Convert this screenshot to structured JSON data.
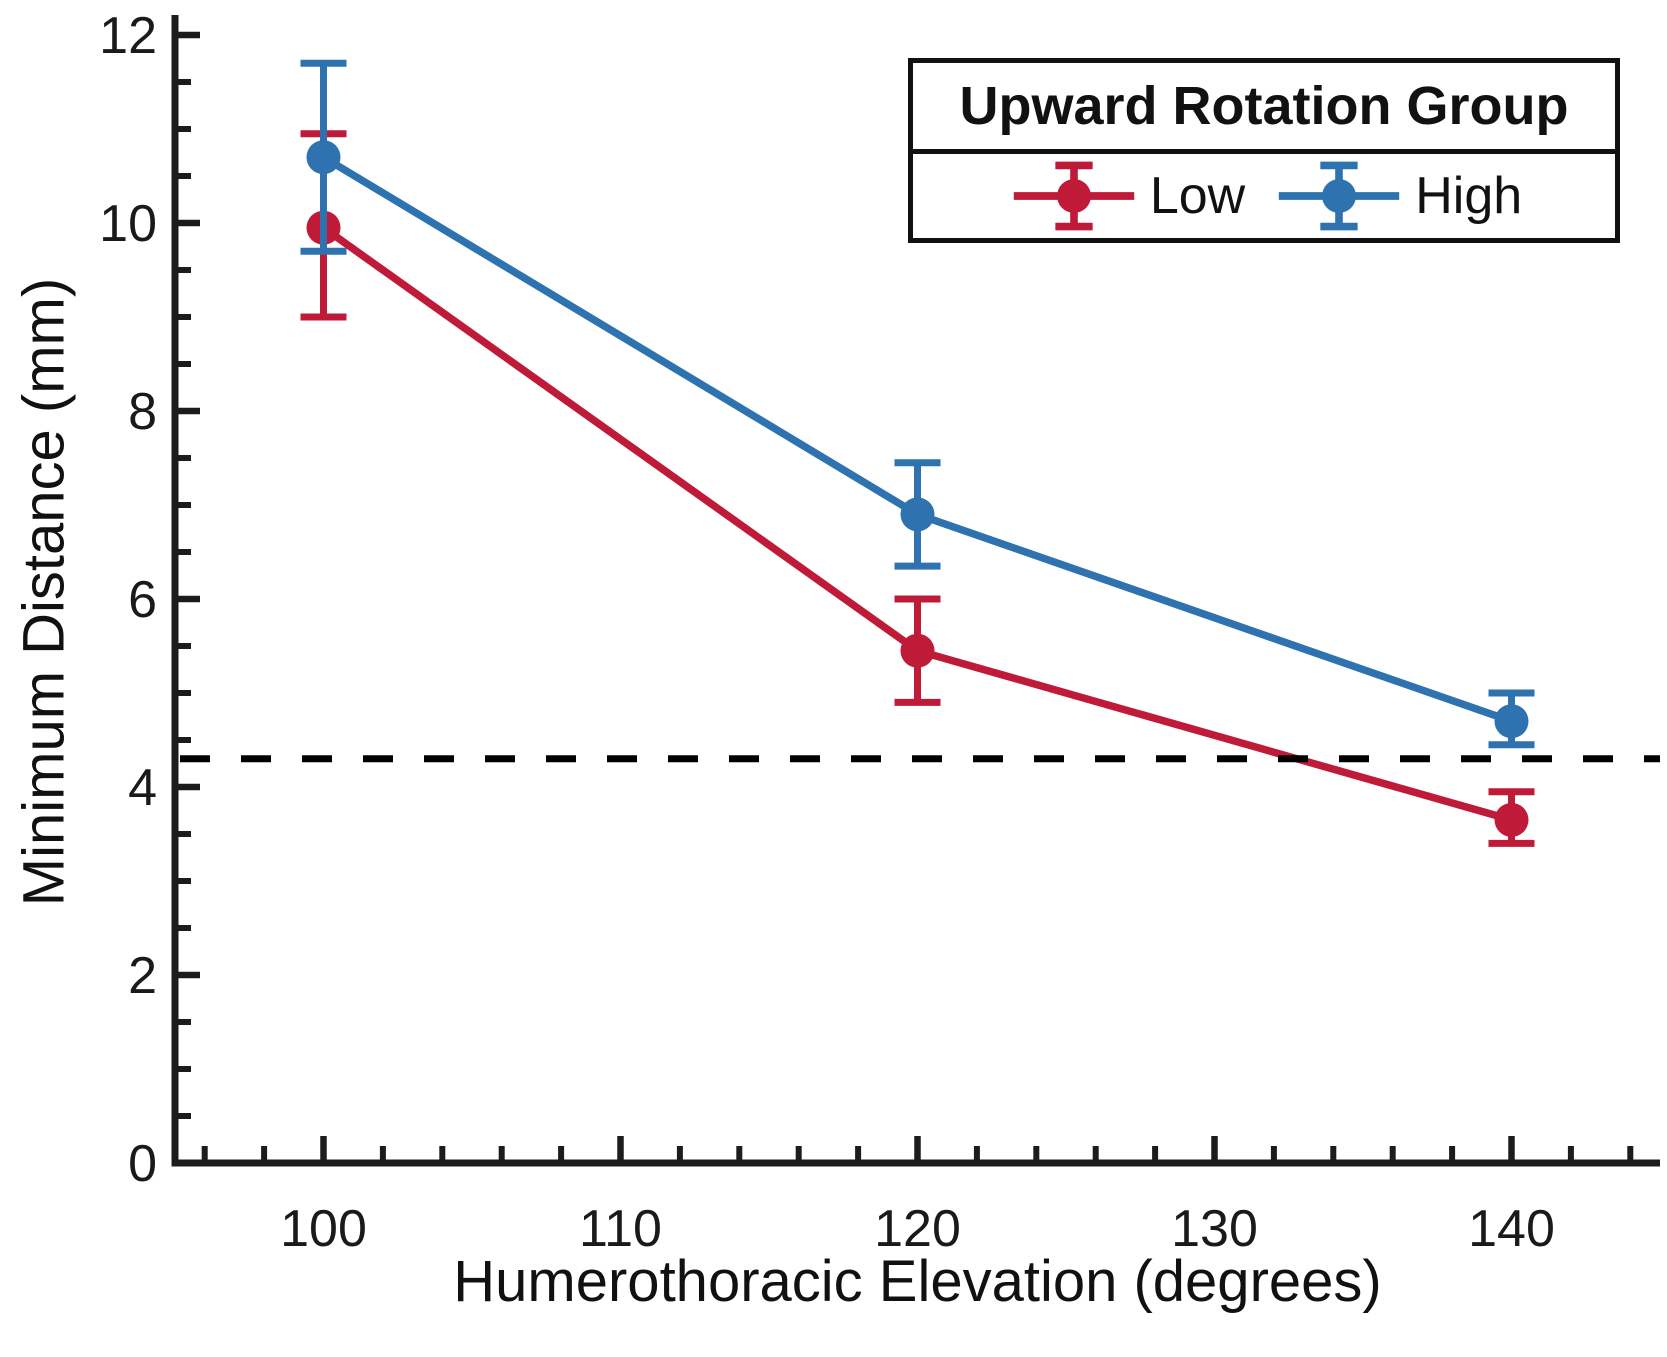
{
  "figure": {
    "background": "#ffffff"
  },
  "colors": {
    "low_series": "#bf1a38",
    "high_series": "#2e72b0",
    "axis": "#1c1c1c",
    "reference_line": "#000000",
    "text": "#111111"
  },
  "chart_data": {
    "type": "line",
    "title": "",
    "xlabel": "Humerothoracic Elevation (degrees)",
    "ylabel": "Minimum Distance (mm)",
    "xlim": [
      95,
      145
    ],
    "ylim": [
      0,
      12
    ],
    "x_major_ticks": [
      100,
      110,
      120,
      130,
      140
    ],
    "x_minor_step": 2,
    "y_major_ticks": [
      0,
      2,
      4,
      6,
      8,
      10,
      12
    ],
    "y_minor_step": 0.5,
    "grid": false,
    "x": [
      100,
      120,
      140
    ],
    "series": [
      {
        "name": "Low",
        "color": "#bf1a38",
        "values": [
          9.95,
          5.45,
          3.65
        ],
        "err_low": [
          9.0,
          4.9,
          3.4
        ],
        "err_high": [
          10.95,
          6.0,
          3.95
        ]
      },
      {
        "name": "High",
        "color": "#2e72b0",
        "values": [
          10.7,
          6.9,
          4.7
        ],
        "err_low": [
          9.7,
          6.35,
          4.45
        ],
        "err_high": [
          11.7,
          7.45,
          5.0
        ]
      }
    ],
    "reference_line": {
      "y": 4.3,
      "style": "dashed",
      "color": "#000000"
    },
    "legend": {
      "title": "Upward Rotation Group",
      "entries": [
        "Low",
        "High"
      ],
      "position": "top-right"
    }
  }
}
